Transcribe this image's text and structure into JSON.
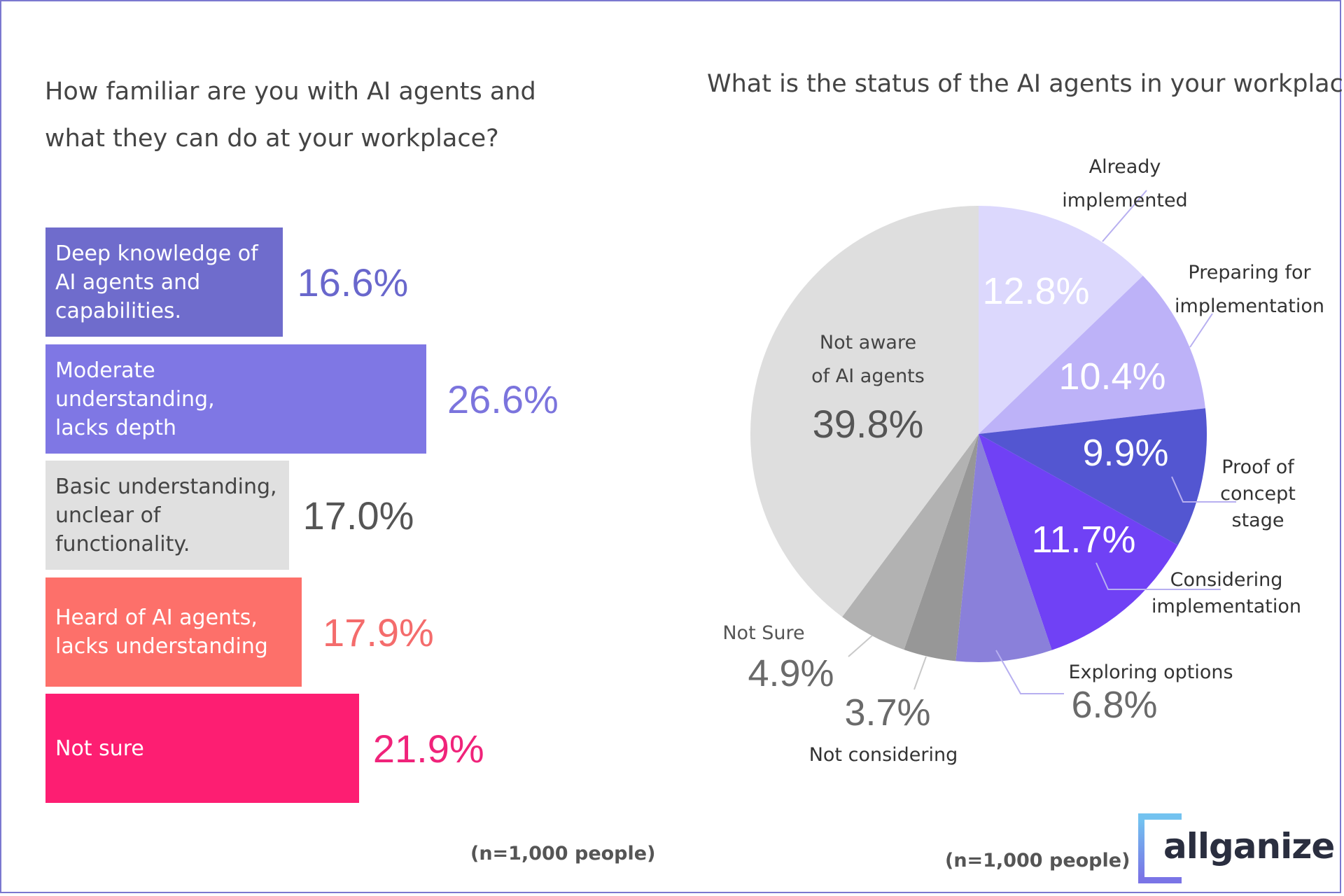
{
  "left_chart": {
    "question": "How familiar are you with AI agents and what they can do at your workplace?",
    "note": "(n=1,000 people)"
  },
  "right_chart": {
    "question": "What is the status of the AI agents  in your workplace?",
    "note": "(n=1,000 people)"
  },
  "logo": {
    "text": "allganize"
  },
  "colors": {
    "title": "#444444",
    "note": "#555555",
    "frame": "#7b78cf"
  },
  "chart_data": [
    {
      "type": "bar",
      "orientation": "horizontal",
      "title": "How familiar are you with AI agents and what they can do at your workplace?",
      "xlim": [
        0,
        30
      ],
      "categories": [
        "Deep knowledge of AI agents and capabilities.",
        "Moderate understanding, lacks depth",
        "Basic understanding, unclear of functionality.",
        "Heard of AI agents, lacks understanding",
        "Not sure"
      ],
      "values": [
        16.6,
        26.6,
        17.0,
        17.9,
        21.9
      ],
      "value_labels": [
        "16.6%",
        "26.6%",
        "17.0%",
        "17.9%",
        "21.9%"
      ],
      "bar_colors": [
        "#6f6ccc",
        "#7f77e4",
        "#e0e0e0",
        "#fd706a",
        "#fd1e72"
      ],
      "label_colors": [
        "#ffffff",
        "#ffffff",
        "#444444",
        "#ffffff",
        "#ffffff"
      ],
      "value_colors": [
        "#6967cc",
        "#7b74dd",
        "#555555",
        "#f46c6c",
        "#f0237a"
      ],
      "note": "(n=1,000 people)"
    },
    {
      "type": "pie",
      "title": "What is the status of the AI agents  in your workplace?",
      "slices": [
        {
          "label": "Already implemented",
          "value": 12.8,
          "display": "12.8%",
          "color": "#dcd8fd",
          "value_color": "#ffffff",
          "label_color": "#333333"
        },
        {
          "label": "Preparing for implementation",
          "value": 10.4,
          "display": "10.4%",
          "color": "#bdb2f8",
          "value_color": "#ffffff",
          "label_color": "#333333"
        },
        {
          "label": "Proof of concept stage",
          "value": 9.9,
          "display": "9.9%",
          "color": "#5356d1",
          "value_color": "#ffffff",
          "label_color": "#333333"
        },
        {
          "label": "Considering implementation",
          "value": 11.7,
          "display": "11.7%",
          "color": "#7041f5",
          "value_color": "#ffffff",
          "label_color": "#333333"
        },
        {
          "label": "Exploring options",
          "value": 6.8,
          "display": "6.8%",
          "color": "#8a80da",
          "value_color": "#6a6a6a",
          "label_color": "#333333"
        },
        {
          "label": "Not considering",
          "value": 3.7,
          "display": "3.7%",
          "color": "#979797",
          "value_color": "#6a6a6a",
          "label_color": "#333333"
        },
        {
          "label": "Not Sure",
          "value": 4.9,
          "display": "4.9%",
          "color": "#b2b2b2",
          "value_color": "#6a6a6a",
          "label_color": "#555555"
        },
        {
          "label": "Not aware of AI agents",
          "value": 39.8,
          "display": "39.8%",
          "color": "#dedede",
          "value_color": "#555555",
          "label_color": "#444444"
        }
      ],
      "start_angle": "12 o'clock",
      "direction": "clockwise",
      "note": "(n=1,000 people)"
    }
  ]
}
